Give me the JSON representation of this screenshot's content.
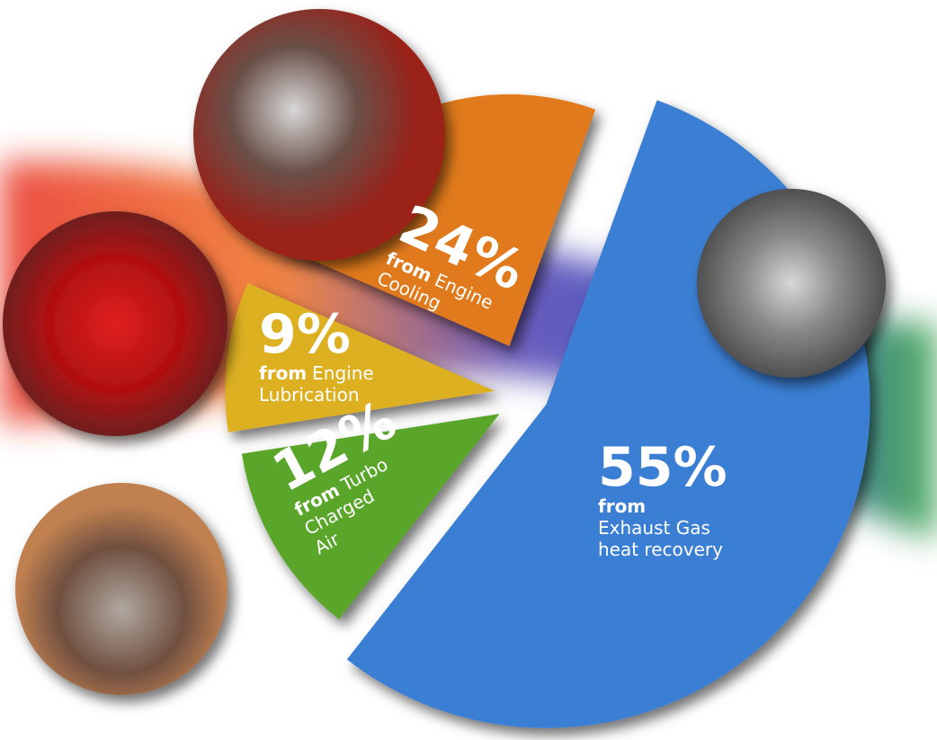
{
  "chart_data": {
    "type": "pie",
    "categories": [
      [
        "Exhaust Gas",
        "heat recovery"
      ],
      [
        "Turbo",
        "Charged",
        "Air"
      ],
      [
        "Engine",
        "Lubrication"
      ],
      [
        "Engine",
        "Cooling"
      ]
    ],
    "category_prefix": "from",
    "values": [
      55,
      12,
      9,
      24
    ],
    "value_labels": [
      "55%",
      "12%",
      "9%",
      "24%"
    ],
    "colors": [
      "#3b7fd4",
      "#5aa62c",
      "#ddb020",
      "#e07a1e"
    ]
  }
}
